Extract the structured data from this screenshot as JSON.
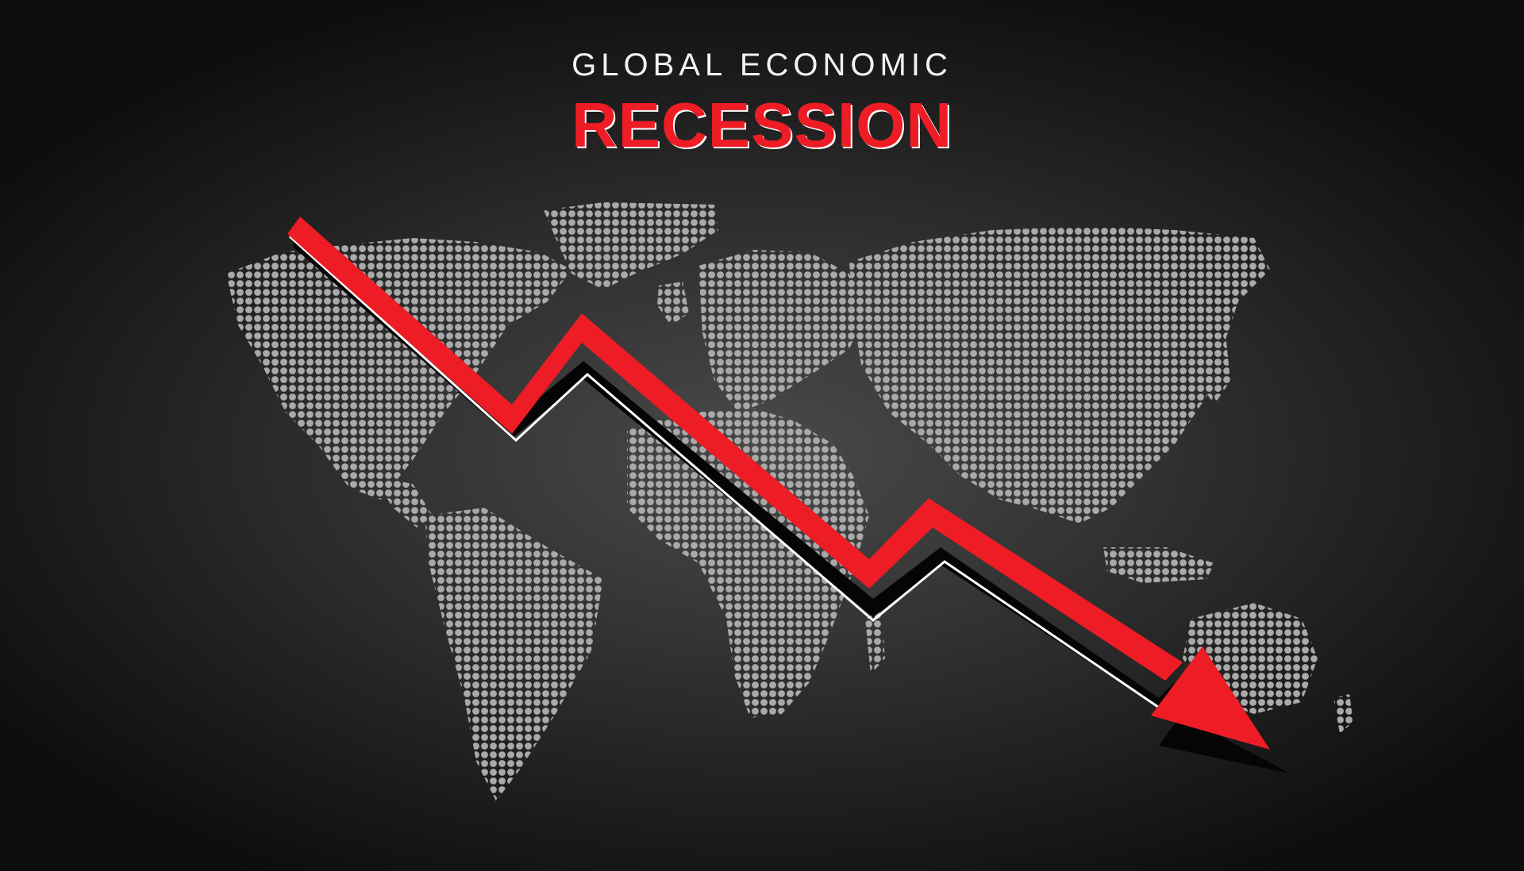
{
  "title": {
    "line1": "GLOBAL ECONOMIC",
    "line2": "RECESSION"
  },
  "colors": {
    "background": "#111111",
    "map_dots": "#a9a9a9",
    "accent_red": "#ee1c25",
    "title_white": "#f2f2f2"
  },
  "graphics": {
    "map": "world-map-dotted",
    "arrow": "downward-trend-arrow"
  }
}
